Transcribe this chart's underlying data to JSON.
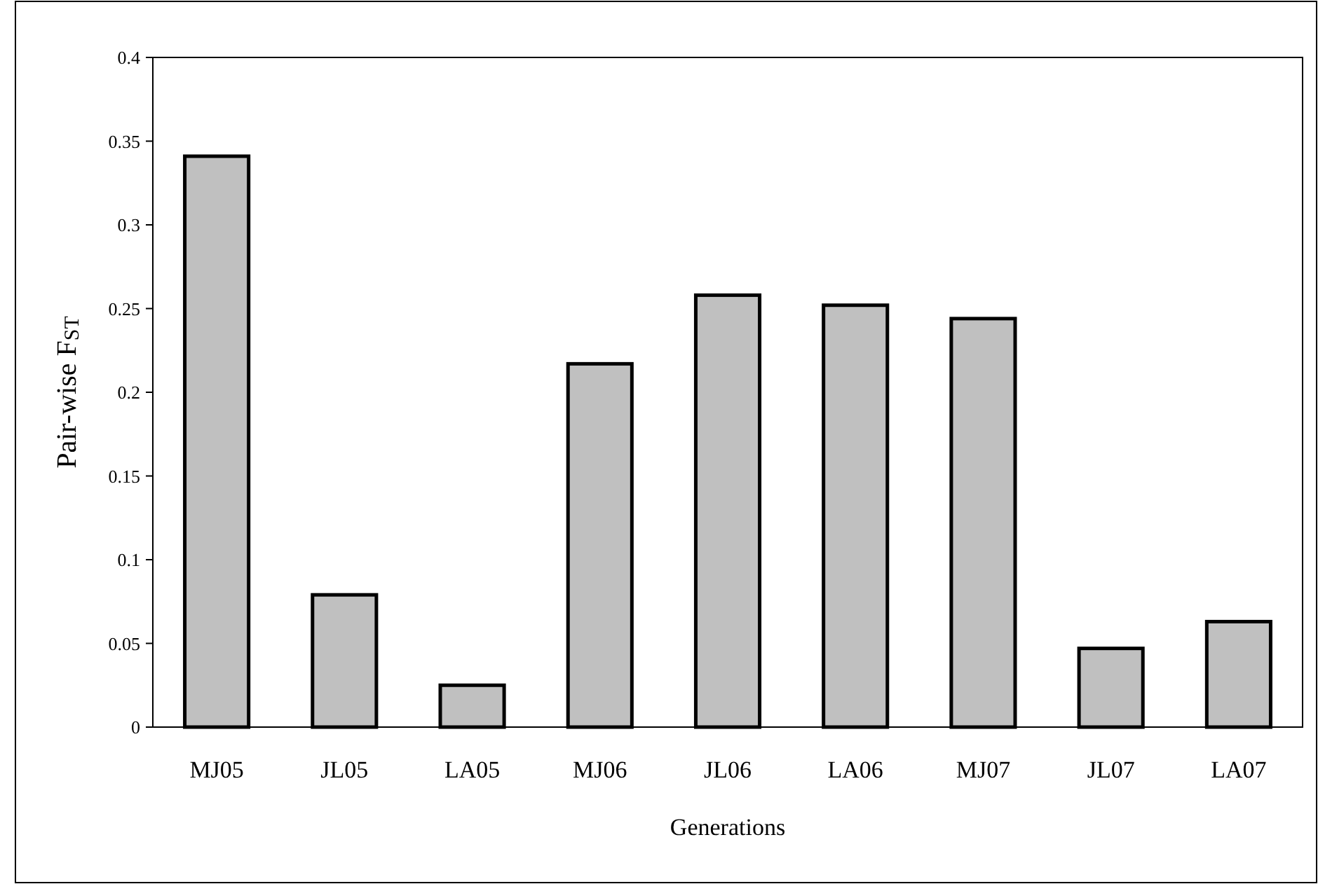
{
  "chart_data": {
    "type": "bar",
    "xlabel": "Generations",
    "ylabel": "Pair-wise F$_{ST}$",
    "categories": [
      "MJ05",
      "JL05",
      "LA05",
      "MJ06",
      "JL06",
      "LA06",
      "MJ07",
      "JL07",
      "LA07"
    ],
    "values": [
      0.341,
      0.079,
      0.025,
      0.217,
      0.258,
      0.252,
      0.244,
      0.047,
      0.063
    ],
    "color": "#c0c0c0",
    "ylim": [
      0,
      0.4
    ],
    "yticks": [
      0,
      0.05,
      0.1,
      0.15,
      0.2,
      0.25,
      0.3,
      0.35,
      0.4
    ],
    "grid": false
  }
}
